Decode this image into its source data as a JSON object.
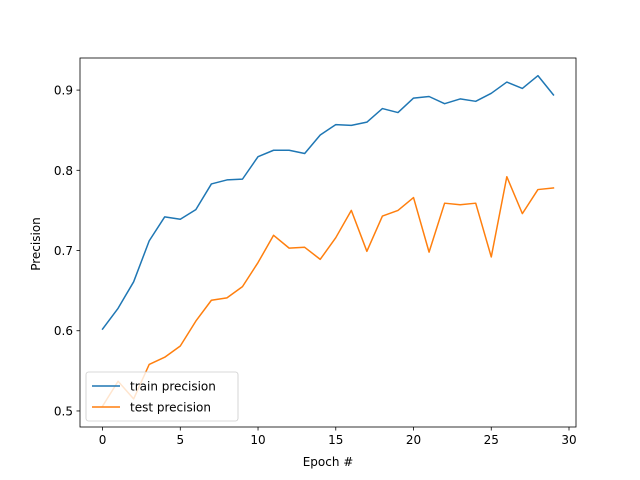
{
  "chart_data": {
    "type": "line",
    "title": "",
    "xlabel": "Epoch #",
    "ylabel": "Precision",
    "xlim": [
      -1.45,
      30.45
    ],
    "ylim": [
      0.48,
      0.94
    ],
    "xticks": [
      0,
      5,
      10,
      15,
      20,
      25,
      30
    ],
    "yticks": [
      0.5,
      0.6,
      0.7,
      0.8,
      0.9
    ],
    "grid": false,
    "legend_position": "lower-left",
    "x": [
      0,
      1,
      2,
      3,
      4,
      5,
      6,
      7,
      8,
      9,
      10,
      11,
      12,
      13,
      14,
      15,
      16,
      17,
      18,
      19,
      20,
      21,
      22,
      23,
      24,
      25,
      26,
      27,
      28,
      29
    ],
    "series": [
      {
        "name": "train precision",
        "color": "#1f77b4",
        "values": [
          0.602,
          0.628,
          0.661,
          0.712,
          0.742,
          0.739,
          0.751,
          0.783,
          0.788,
          0.789,
          0.817,
          0.825,
          0.825,
          0.821,
          0.844,
          0.857,
          0.856,
          0.86,
          0.877,
          0.872,
          0.89,
          0.892,
          0.883,
          0.889,
          0.886,
          0.896,
          0.91,
          0.902,
          0.918,
          0.894
        ]
      },
      {
        "name": "test precision",
        "color": "#ff7f0e",
        "values": [
          0.506,
          0.537,
          0.515,
          0.558,
          0.567,
          0.581,
          0.612,
          0.638,
          0.641,
          0.655,
          0.685,
          0.719,
          0.703,
          0.704,
          0.689,
          0.716,
          0.75,
          0.699,
          0.743,
          0.75,
          0.766,
          0.698,
          0.759,
          0.757,
          0.759,
          0.692,
          0.792,
          0.746,
          0.776,
          0.778
        ]
      }
    ]
  }
}
